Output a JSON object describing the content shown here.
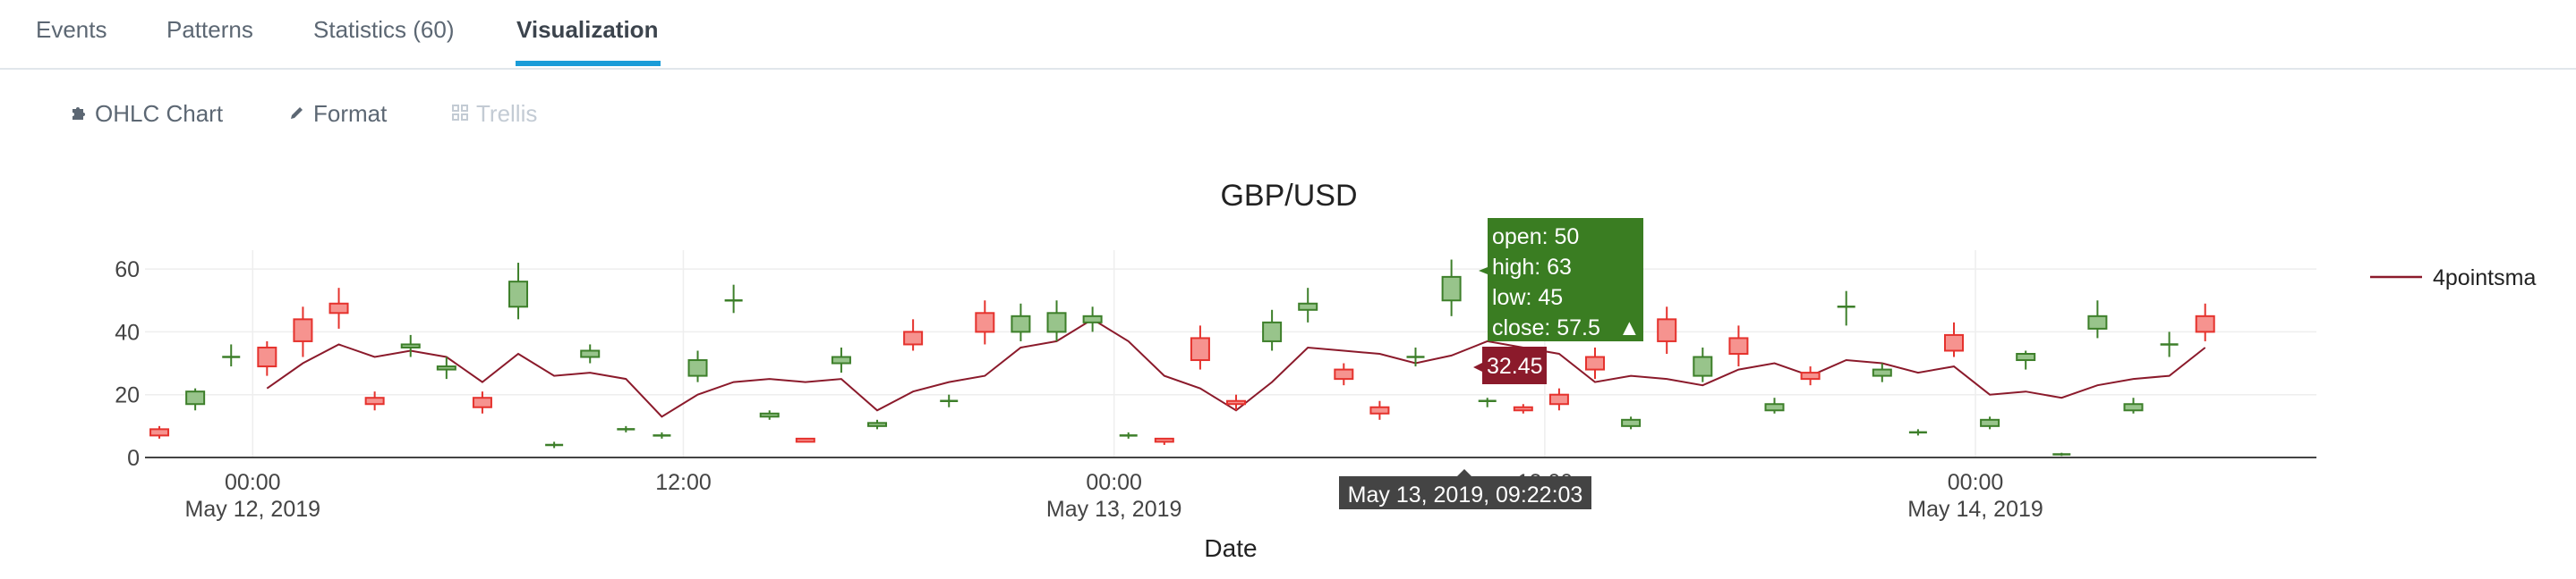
{
  "tabs": [
    {
      "label": "Events"
    },
    {
      "label": "Patterns"
    },
    {
      "label": "Statistics (60)"
    },
    {
      "label": "Visualization"
    }
  ],
  "toolbar": {
    "ohlc_label": "OHLC Chart",
    "format_label": "Format",
    "trellis_label": "Trellis"
  },
  "colors": {
    "increasing": "#3d7f2a",
    "increasing_fill": "#98c48b",
    "decreasing": "#e5322d",
    "decreasing_fill": "#f6938f",
    "sma_line": "#8b1a2b",
    "tab_accent": "#1a9cd8"
  },
  "icons": {
    "ohlc": "puzzle-piece-icon",
    "format": "pencil-icon",
    "trellis": "grid-icon"
  },
  "hover": {
    "open": "open: 50",
    "high": "high: 63",
    "low": "low: 45",
    "close": "close: 57.5",
    "close_marker": "▲",
    "sma_value": "32.45",
    "date": "May 13, 2019, 09:22:03"
  },
  "chart_data": {
    "type": "ohlc",
    "title": "GBP/USD",
    "xlabel": "Date",
    "ylabel": "",
    "xlim_hours": [
      -3,
      57.5
    ],
    "ylim": [
      0,
      66
    ],
    "yticks": [
      0,
      20,
      40,
      60
    ],
    "xticks": [
      {
        "hour": 0,
        "l1": "00:00",
        "l2": "May 12, 2019"
      },
      {
        "hour": 12,
        "l1": "12:00",
        "l2": ""
      },
      {
        "hour": 24,
        "l1": "00:00",
        "l2": "May 13, 2019"
      },
      {
        "hour": 36,
        "l1": "12:00",
        "l2": ""
      },
      {
        "hour": 48,
        "l1": "00:00",
        "l2": "May 14, 2019"
      }
    ],
    "grid": true,
    "legend": {
      "position": "top-right",
      "entries": [
        "4pointsma"
      ]
    },
    "candles": [
      {
        "h": -2.6,
        "o": 9,
        "c": 7,
        "hi": 10,
        "lo": 6
      },
      {
        "h": -1.6,
        "o": 17,
        "c": 21,
        "hi": 22,
        "lo": 15
      },
      {
        "h": -0.6,
        "o": 32,
        "c": 32,
        "hi": 36,
        "lo": 29
      },
      {
        "h": 0.4,
        "o": 35,
        "c": 29,
        "hi": 37,
        "lo": 26
      },
      {
        "h": 1.4,
        "o": 44,
        "c": 37,
        "hi": 48,
        "lo": 32
      },
      {
        "h": 2.4,
        "o": 49,
        "c": 46,
        "hi": 54,
        "lo": 41
      },
      {
        "h": 3.4,
        "o": 19,
        "c": 17,
        "hi": 21,
        "lo": 15
      },
      {
        "h": 4.4,
        "o": 35,
        "c": 36,
        "hi": 39,
        "lo": 32
      },
      {
        "h": 5.4,
        "o": 28,
        "c": 29,
        "hi": 32,
        "lo": 25
      },
      {
        "h": 6.4,
        "o": 19,
        "c": 16,
        "hi": 21,
        "lo": 14
      },
      {
        "h": 7.4,
        "o": 48,
        "c": 56,
        "hi": 62,
        "lo": 44
      },
      {
        "h": 8.4,
        "o": 4,
        "c": 4,
        "hi": 5,
        "lo": 3
      },
      {
        "h": 9.4,
        "o": 32,
        "c": 34,
        "hi": 36,
        "lo": 30
      },
      {
        "h": 10.4,
        "o": 9,
        "c": 9,
        "hi": 10,
        "lo": 8
      },
      {
        "h": 11.4,
        "o": 7,
        "c": 7,
        "hi": 8,
        "lo": 6
      },
      {
        "h": 12.4,
        "o": 26,
        "c": 31,
        "hi": 34,
        "lo": 24
      },
      {
        "h": 13.4,
        "o": 50,
        "c": 50,
        "hi": 55,
        "lo": 46
      },
      {
        "h": 14.4,
        "o": 13,
        "c": 14,
        "hi": 15,
        "lo": 12
      },
      {
        "h": 15.4,
        "o": 6,
        "c": 5,
        "hi": 6,
        "lo": 5
      },
      {
        "h": 16.4,
        "o": 30,
        "c": 32,
        "hi": 35,
        "lo": 27
      },
      {
        "h": 17.4,
        "o": 10,
        "c": 11,
        "hi": 12,
        "lo": 9
      },
      {
        "h": 18.4,
        "o": 40,
        "c": 36,
        "hi": 44,
        "lo": 34
      },
      {
        "h": 19.4,
        "o": 18,
        "c": 18,
        "hi": 20,
        "lo": 16
      },
      {
        "h": 20.4,
        "o": 46,
        "c": 40,
        "hi": 50,
        "lo": 36
      },
      {
        "h": 21.4,
        "o": 40,
        "c": 45,
        "hi": 49,
        "lo": 37
      },
      {
        "h": 22.4,
        "o": 40,
        "c": 46,
        "hi": 50,
        "lo": 37
      },
      {
        "h": 23.4,
        "o": 43,
        "c": 45,
        "hi": 48,
        "lo": 40
      },
      {
        "h": 24.4,
        "o": 7,
        "c": 7,
        "hi": 8,
        "lo": 6
      },
      {
        "h": 25.4,
        "o": 6,
        "c": 5,
        "hi": 6,
        "lo": 4
      },
      {
        "h": 26.4,
        "o": 38,
        "c": 31,
        "hi": 42,
        "lo": 28
      },
      {
        "h": 27.4,
        "o": 18,
        "c": 17,
        "hi": 20,
        "lo": 15
      },
      {
        "h": 28.4,
        "o": 37,
        "c": 43,
        "hi": 47,
        "lo": 34
      },
      {
        "h": 29.4,
        "o": 47,
        "c": 49,
        "hi": 54,
        "lo": 43
      },
      {
        "h": 30.4,
        "o": 28,
        "c": 25,
        "hi": 30,
        "lo": 23
      },
      {
        "h": 31.4,
        "o": 16,
        "c": 14,
        "hi": 18,
        "lo": 12
      },
      {
        "h": 32.4,
        "o": 32,
        "c": 32,
        "hi": 35,
        "lo": 29
      },
      {
        "h": 33.4,
        "o": 50,
        "c": 57.5,
        "hi": 63,
        "lo": 45
      },
      {
        "h": 34.4,
        "o": 18,
        "c": 18,
        "hi": 19,
        "lo": 16
      },
      {
        "h": 35.4,
        "o": 16,
        "c": 15,
        "hi": 17,
        "lo": 14
      },
      {
        "h": 36.4,
        "o": 20,
        "c": 17,
        "hi": 22,
        "lo": 15
      },
      {
        "h": 37.4,
        "o": 32,
        "c": 28,
        "hi": 35,
        "lo": 25
      },
      {
        "h": 38.4,
        "o": 10,
        "c": 12,
        "hi": 13,
        "lo": 9
      },
      {
        "h": 39.4,
        "o": 44,
        "c": 37,
        "hi": 48,
        "lo": 33
      },
      {
        "h": 40.4,
        "o": 26,
        "c": 32,
        "hi": 35,
        "lo": 24
      },
      {
        "h": 41.4,
        "o": 38,
        "c": 33,
        "hi": 42,
        "lo": 29
      },
      {
        "h": 42.4,
        "o": 15,
        "c": 17,
        "hi": 19,
        "lo": 14
      },
      {
        "h": 43.4,
        "o": 27,
        "c": 25,
        "hi": 29,
        "lo": 23
      },
      {
        "h": 44.4,
        "o": 48,
        "c": 48,
        "hi": 53,
        "lo": 42
      },
      {
        "h": 45.4,
        "o": 26,
        "c": 28,
        "hi": 30,
        "lo": 24
      },
      {
        "h": 46.4,
        "o": 8,
        "c": 8,
        "hi": 9,
        "lo": 7
      },
      {
        "h": 47.4,
        "o": 39,
        "c": 34,
        "hi": 43,
        "lo": 32
      },
      {
        "h": 48.4,
        "o": 10,
        "c": 12,
        "hi": 13,
        "lo": 9
      },
      {
        "h": 49.4,
        "o": 31,
        "c": 33,
        "hi": 34,
        "lo": 28
      },
      {
        "h": 50.4,
        "o": 1,
        "c": 1,
        "hi": 1.5,
        "lo": 0.5
      },
      {
        "h": 51.4,
        "o": 41,
        "c": 45,
        "hi": 50,
        "lo": 38
      },
      {
        "h": 52.4,
        "o": 15,
        "c": 17,
        "hi": 19,
        "lo": 14
      },
      {
        "h": 53.4,
        "o": 36,
        "c": 36,
        "hi": 40,
        "lo": 32
      },
      {
        "h": 54.4,
        "o": 45,
        "c": 40,
        "hi": 49,
        "lo": 37
      }
    ],
    "sma": {
      "name": "4pointsma",
      "points": [
        [
          0.4,
          22
        ],
        [
          1.4,
          30
        ],
        [
          2.4,
          36
        ],
        [
          3.4,
          32
        ],
        [
          4.4,
          34
        ],
        [
          5.4,
          32
        ],
        [
          6.4,
          24
        ],
        [
          7.4,
          33
        ],
        [
          8.4,
          26
        ],
        [
          9.4,
          27
        ],
        [
          10.4,
          25
        ],
        [
          11.4,
          13
        ],
        [
          12.4,
          20
        ],
        [
          13.4,
          24
        ],
        [
          14.4,
          25
        ],
        [
          15.4,
          24
        ],
        [
          16.4,
          25
        ],
        [
          17.4,
          15
        ],
        [
          18.4,
          21
        ],
        [
          19.4,
          24
        ],
        [
          20.4,
          26
        ],
        [
          21.4,
          35
        ],
        [
          22.4,
          37
        ],
        [
          23.4,
          44
        ],
        [
          24.4,
          37
        ],
        [
          25.4,
          26
        ],
        [
          26.4,
          22
        ],
        [
          27.4,
          15
        ],
        [
          28.4,
          24
        ],
        [
          29.4,
          35
        ],
        [
          30.4,
          34
        ],
        [
          31.4,
          33
        ],
        [
          32.4,
          30
        ],
        [
          33.4,
          32.45
        ],
        [
          34.4,
          37
        ],
        [
          35.4,
          35
        ],
        [
          36.4,
          33
        ],
        [
          37.4,
          24
        ],
        [
          38.4,
          26
        ],
        [
          39.4,
          25
        ],
        [
          40.4,
          23
        ],
        [
          41.4,
          28
        ],
        [
          42.4,
          30
        ],
        [
          43.4,
          26
        ],
        [
          44.4,
          31
        ],
        [
          45.4,
          30
        ],
        [
          46.4,
          27
        ],
        [
          47.4,
          29
        ],
        [
          48.4,
          20
        ],
        [
          49.4,
          21
        ],
        [
          50.4,
          19
        ],
        [
          51.4,
          23
        ],
        [
          52.4,
          25
        ],
        [
          53.4,
          26
        ],
        [
          54.4,
          35
        ]
      ]
    }
  }
}
